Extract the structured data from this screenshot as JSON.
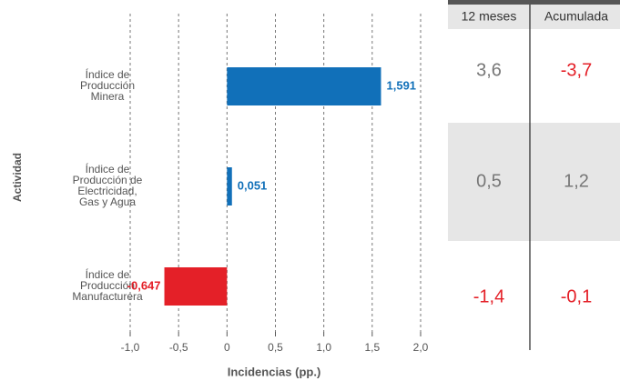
{
  "chart_data": {
    "type": "hbar",
    "categories": [
      "Índice de\nProducción\nMinera",
      "Índice de\nProducción de\nElectricidad,\nGas y Agua",
      "Índice de\nProducción\nManufacturera"
    ],
    "values": [
      1.591,
      0.051,
      -0.647
    ],
    "value_labels": [
      "1,591",
      "0,051",
      "-0,647"
    ],
    "colors": [
      "#1170b9",
      "#1170b9",
      "#e42028"
    ],
    "xlim": [
      -1.0,
      2.0
    ],
    "xticks": [
      {
        "value": -1.0,
        "label": "-1,0"
      },
      {
        "value": -0.5,
        "label": "-0,5"
      },
      {
        "value": 0,
        "label": "0"
      },
      {
        "value": 0.5,
        "label": "0,5"
      },
      {
        "value": 1.0,
        "label": "1,0"
      },
      {
        "value": 1.5,
        "label": "1,5"
      },
      {
        "value": 2.0,
        "label": "2,0"
      }
    ],
    "grid": true,
    "xlabel": "Incidencias (pp.)",
    "ylabel": "Actividad"
  },
  "table": {
    "columns": [
      "12 meses",
      "Acumulada"
    ],
    "rows": [
      [
        "3,6",
        "-3,7"
      ],
      [
        "0,5",
        "1,2"
      ],
      [
        "-1,4",
        "-0,1"
      ]
    ]
  }
}
